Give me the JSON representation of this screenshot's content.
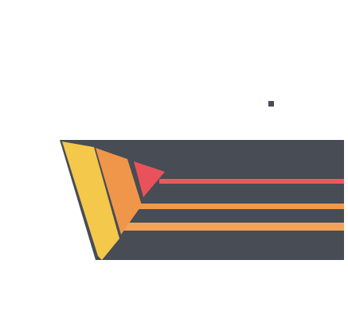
{
  "logo": {
    "icon": "stylized-w-stripes-logo",
    "colors": {
      "background": "#ffffff",
      "band": "#474c55",
      "stripe_yellow": "#f4c84a",
      "stripe_orange": "#f0964a",
      "triangle_red": "#e9525a",
      "line_red": "#e85a5e",
      "line_orange": "#ef9a4a",
      "line_orange_light": "#f2a35a",
      "dot": "#474c55"
    }
  }
}
